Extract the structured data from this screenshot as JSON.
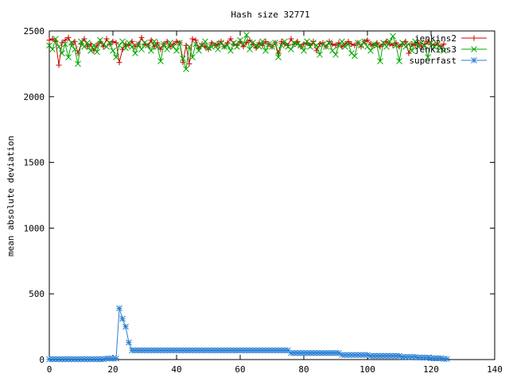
{
  "chart_data": {
    "type": "line",
    "title": "Hash size 32771",
    "xlabel": "",
    "ylabel": "mean absolute deviation",
    "xlim": [
      0,
      140
    ],
    "ylim": [
      0,
      2500
    ],
    "xticks": [
      0,
      20,
      40,
      60,
      80,
      100,
      120,
      140
    ],
    "yticks": [
      0,
      500,
      1000,
      1500,
      2000,
      2500
    ],
    "grid": false,
    "legend_position": "top-right",
    "series": [
      {
        "name": "jenkins2",
        "color": "#cc0000",
        "marker": "plus",
        "x": [
          0,
          1,
          2,
          3,
          4,
          5,
          6,
          7,
          8,
          9,
          10,
          11,
          12,
          13,
          14,
          15,
          16,
          17,
          18,
          19,
          20,
          21,
          22,
          23,
          24,
          25,
          26,
          27,
          28,
          29,
          30,
          31,
          32,
          33,
          34,
          35,
          36,
          37,
          38,
          39,
          40,
          41,
          42,
          43,
          44,
          45,
          46,
          47,
          48,
          49,
          50,
          51,
          52,
          53,
          54,
          55,
          56,
          57,
          58,
          59,
          60,
          61,
          62,
          63,
          64,
          65,
          66,
          67,
          68,
          69,
          70,
          71,
          72,
          73,
          74,
          75,
          76,
          77,
          78,
          79,
          80,
          81,
          82,
          83,
          84,
          85,
          86,
          87,
          88,
          89,
          90,
          91,
          92,
          93,
          94,
          95,
          96,
          97,
          98,
          99,
          100,
          101,
          102,
          103,
          104,
          105,
          106,
          107,
          108,
          109,
          110,
          111,
          112,
          113,
          114,
          115,
          116,
          117,
          118,
          119,
          120,
          121,
          122,
          123,
          124
        ],
        "values": [
          2430,
          2440,
          2420,
          2240,
          2410,
          2430,
          2450,
          2400,
          2420,
          2330,
          2400,
          2440,
          2380,
          2400,
          2350,
          2390,
          2420,
          2380,
          2440,
          2400,
          2420,
          2410,
          2260,
          2360,
          2400,
          2390,
          2420,
          2380,
          2400,
          2450,
          2400,
          2390,
          2430,
          2380,
          2410,
          2360,
          2400,
          2420,
          2380,
          2400,
          2420,
          2410,
          2260,
          2390,
          2250,
          2440,
          2430,
          2370,
          2400,
          2380,
          2360,
          2410,
          2390,
          2400,
          2420,
          2380,
          2410,
          2440,
          2400,
          2390,
          2420,
          2380,
          2410,
          2430,
          2400,
          2370,
          2410,
          2390,
          2420,
          2400,
          2380,
          2410,
          2330,
          2420,
          2400,
          2390,
          2440,
          2400,
          2420,
          2380,
          2400,
          2410,
          2390,
          2420,
          2350,
          2400,
          2410,
          2380,
          2420,
          2400,
          2390,
          2410,
          2380,
          2400,
          2420,
          2400,
          2390,
          2410,
          2380,
          2420,
          2430,
          2400,
          2390,
          2410,
          2380,
          2400,
          2420,
          2400,
          2390,
          2410,
          2380,
          2400,
          2420,
          2330,
          2400,
          2390,
          2410,
          2380,
          2400,
          2420,
          2400,
          2390,
          2410,
          2380,
          2400
        ]
      },
      {
        "name": "jenkins3",
        "color": "#00aa00",
        "marker": "cross",
        "x": [
          0,
          1,
          2,
          3,
          4,
          5,
          6,
          7,
          8,
          9,
          10,
          11,
          12,
          13,
          14,
          15,
          16,
          17,
          18,
          19,
          20,
          21,
          22,
          23,
          24,
          25,
          26,
          27,
          28,
          29,
          30,
          31,
          32,
          33,
          34,
          35,
          36,
          37,
          38,
          39,
          40,
          41,
          42,
          43,
          44,
          45,
          46,
          47,
          48,
          49,
          50,
          51,
          52,
          53,
          54,
          55,
          56,
          57,
          58,
          59,
          60,
          61,
          62,
          63,
          64,
          65,
          66,
          67,
          68,
          69,
          70,
          71,
          72,
          73,
          74,
          75,
          76,
          77,
          78,
          79,
          80,
          81,
          82,
          83,
          84,
          85,
          86,
          87,
          88,
          89,
          90,
          91,
          92,
          93,
          94,
          95,
          96,
          97,
          98,
          99,
          100,
          101,
          102,
          103,
          104,
          105,
          106,
          107,
          108,
          109,
          110,
          111,
          112,
          113,
          114,
          115,
          116,
          117,
          118,
          119,
          120,
          121,
          122,
          123,
          124
        ],
        "values": [
          2390,
          2360,
          2440,
          2380,
          2330,
          2400,
          2300,
          2410,
          2360,
          2250,
          2420,
          2380,
          2410,
          2350,
          2390,
          2340,
          2430,
          2400,
          2380,
          2410,
          2350,
          2300,
          2390,
          2420,
          2370,
          2410,
          2380,
          2330,
          2400,
          2360,
          2410,
          2390,
          2350,
          2420,
          2380,
          2270,
          2400,
          2360,
          2410,
          2380,
          2350,
          2410,
          2290,
          2210,
          2380,
          2300,
          2400,
          2350,
          2390,
          2420,
          2370,
          2380,
          2400,
          2360,
          2410,
          2380,
          2390,
          2350,
          2410,
          2380,
          2430,
          2400,
          2470,
          2360,
          2410,
          2390,
          2380,
          2420,
          2350,
          2400,
          2380,
          2410,
          2300,
          2390,
          2420,
          2380,
          2360,
          2410,
          2400,
          2390,
          2350,
          2420,
          2380,
          2410,
          2390,
          2320,
          2400,
          2380,
          2410,
          2350,
          2320,
          2390,
          2420,
          2380,
          2400,
          2330,
          2310,
          2410,
          2390,
          2420,
          2380,
          2350,
          2400,
          2390,
          2270,
          2410,
          2380,
          2420,
          2460,
          2390,
          2270,
          2410,
          2380,
          2400,
          2350,
          2420,
          2380,
          2410,
          2390,
          2300,
          2410,
          2380,
          2400,
          2370,
          2350
        ]
      },
      {
        "name": "superfast",
        "color": "#2a7fd4",
        "marker": "star",
        "x": [
          0,
          1,
          2,
          3,
          4,
          5,
          6,
          7,
          8,
          9,
          10,
          11,
          12,
          13,
          14,
          15,
          16,
          17,
          18,
          19,
          20,
          21,
          22,
          23,
          24,
          25,
          26,
          27,
          28,
          29,
          30,
          31,
          32,
          33,
          34,
          35,
          36,
          37,
          38,
          39,
          40,
          41,
          42,
          43,
          44,
          45,
          46,
          47,
          48,
          49,
          50,
          51,
          52,
          53,
          54,
          55,
          56,
          57,
          58,
          59,
          60,
          61,
          62,
          63,
          64,
          65,
          66,
          67,
          68,
          69,
          70,
          71,
          72,
          73,
          74,
          75,
          76,
          77,
          78,
          79,
          80,
          81,
          82,
          83,
          84,
          85,
          86,
          87,
          88,
          89,
          90,
          91,
          92,
          93,
          94,
          95,
          96,
          97,
          98,
          99,
          100,
          101,
          102,
          103,
          104,
          105,
          106,
          107,
          108,
          109,
          110,
          111,
          112,
          113,
          114,
          115,
          116,
          117,
          118,
          119,
          120,
          121,
          122,
          123,
          124,
          125
        ],
        "values": [
          3,
          3,
          3,
          3,
          3,
          3,
          3,
          3,
          3,
          3,
          3,
          3,
          3,
          3,
          3,
          3,
          3,
          3,
          8,
          8,
          8,
          8,
          390,
          310,
          250,
          130,
          70,
          70,
          70,
          70,
          70,
          70,
          70,
          70,
          70,
          70,
          70,
          70,
          70,
          70,
          70,
          70,
          70,
          70,
          70,
          70,
          70,
          70,
          70,
          70,
          70,
          70,
          70,
          70,
          70,
          70,
          70,
          70,
          70,
          70,
          70,
          70,
          70,
          70,
          70,
          70,
          70,
          70,
          70,
          70,
          70,
          70,
          70,
          70,
          70,
          70,
          50,
          50,
          50,
          50,
          50,
          50,
          50,
          50,
          50,
          50,
          50,
          50,
          50,
          50,
          50,
          50,
          35,
          35,
          35,
          35,
          35,
          35,
          35,
          35,
          35,
          28,
          28,
          28,
          28,
          28,
          28,
          28,
          28,
          28,
          28,
          20,
          20,
          20,
          20,
          20,
          15,
          15,
          15,
          15,
          10,
          10,
          10,
          10,
          5,
          5
        ]
      }
    ]
  }
}
